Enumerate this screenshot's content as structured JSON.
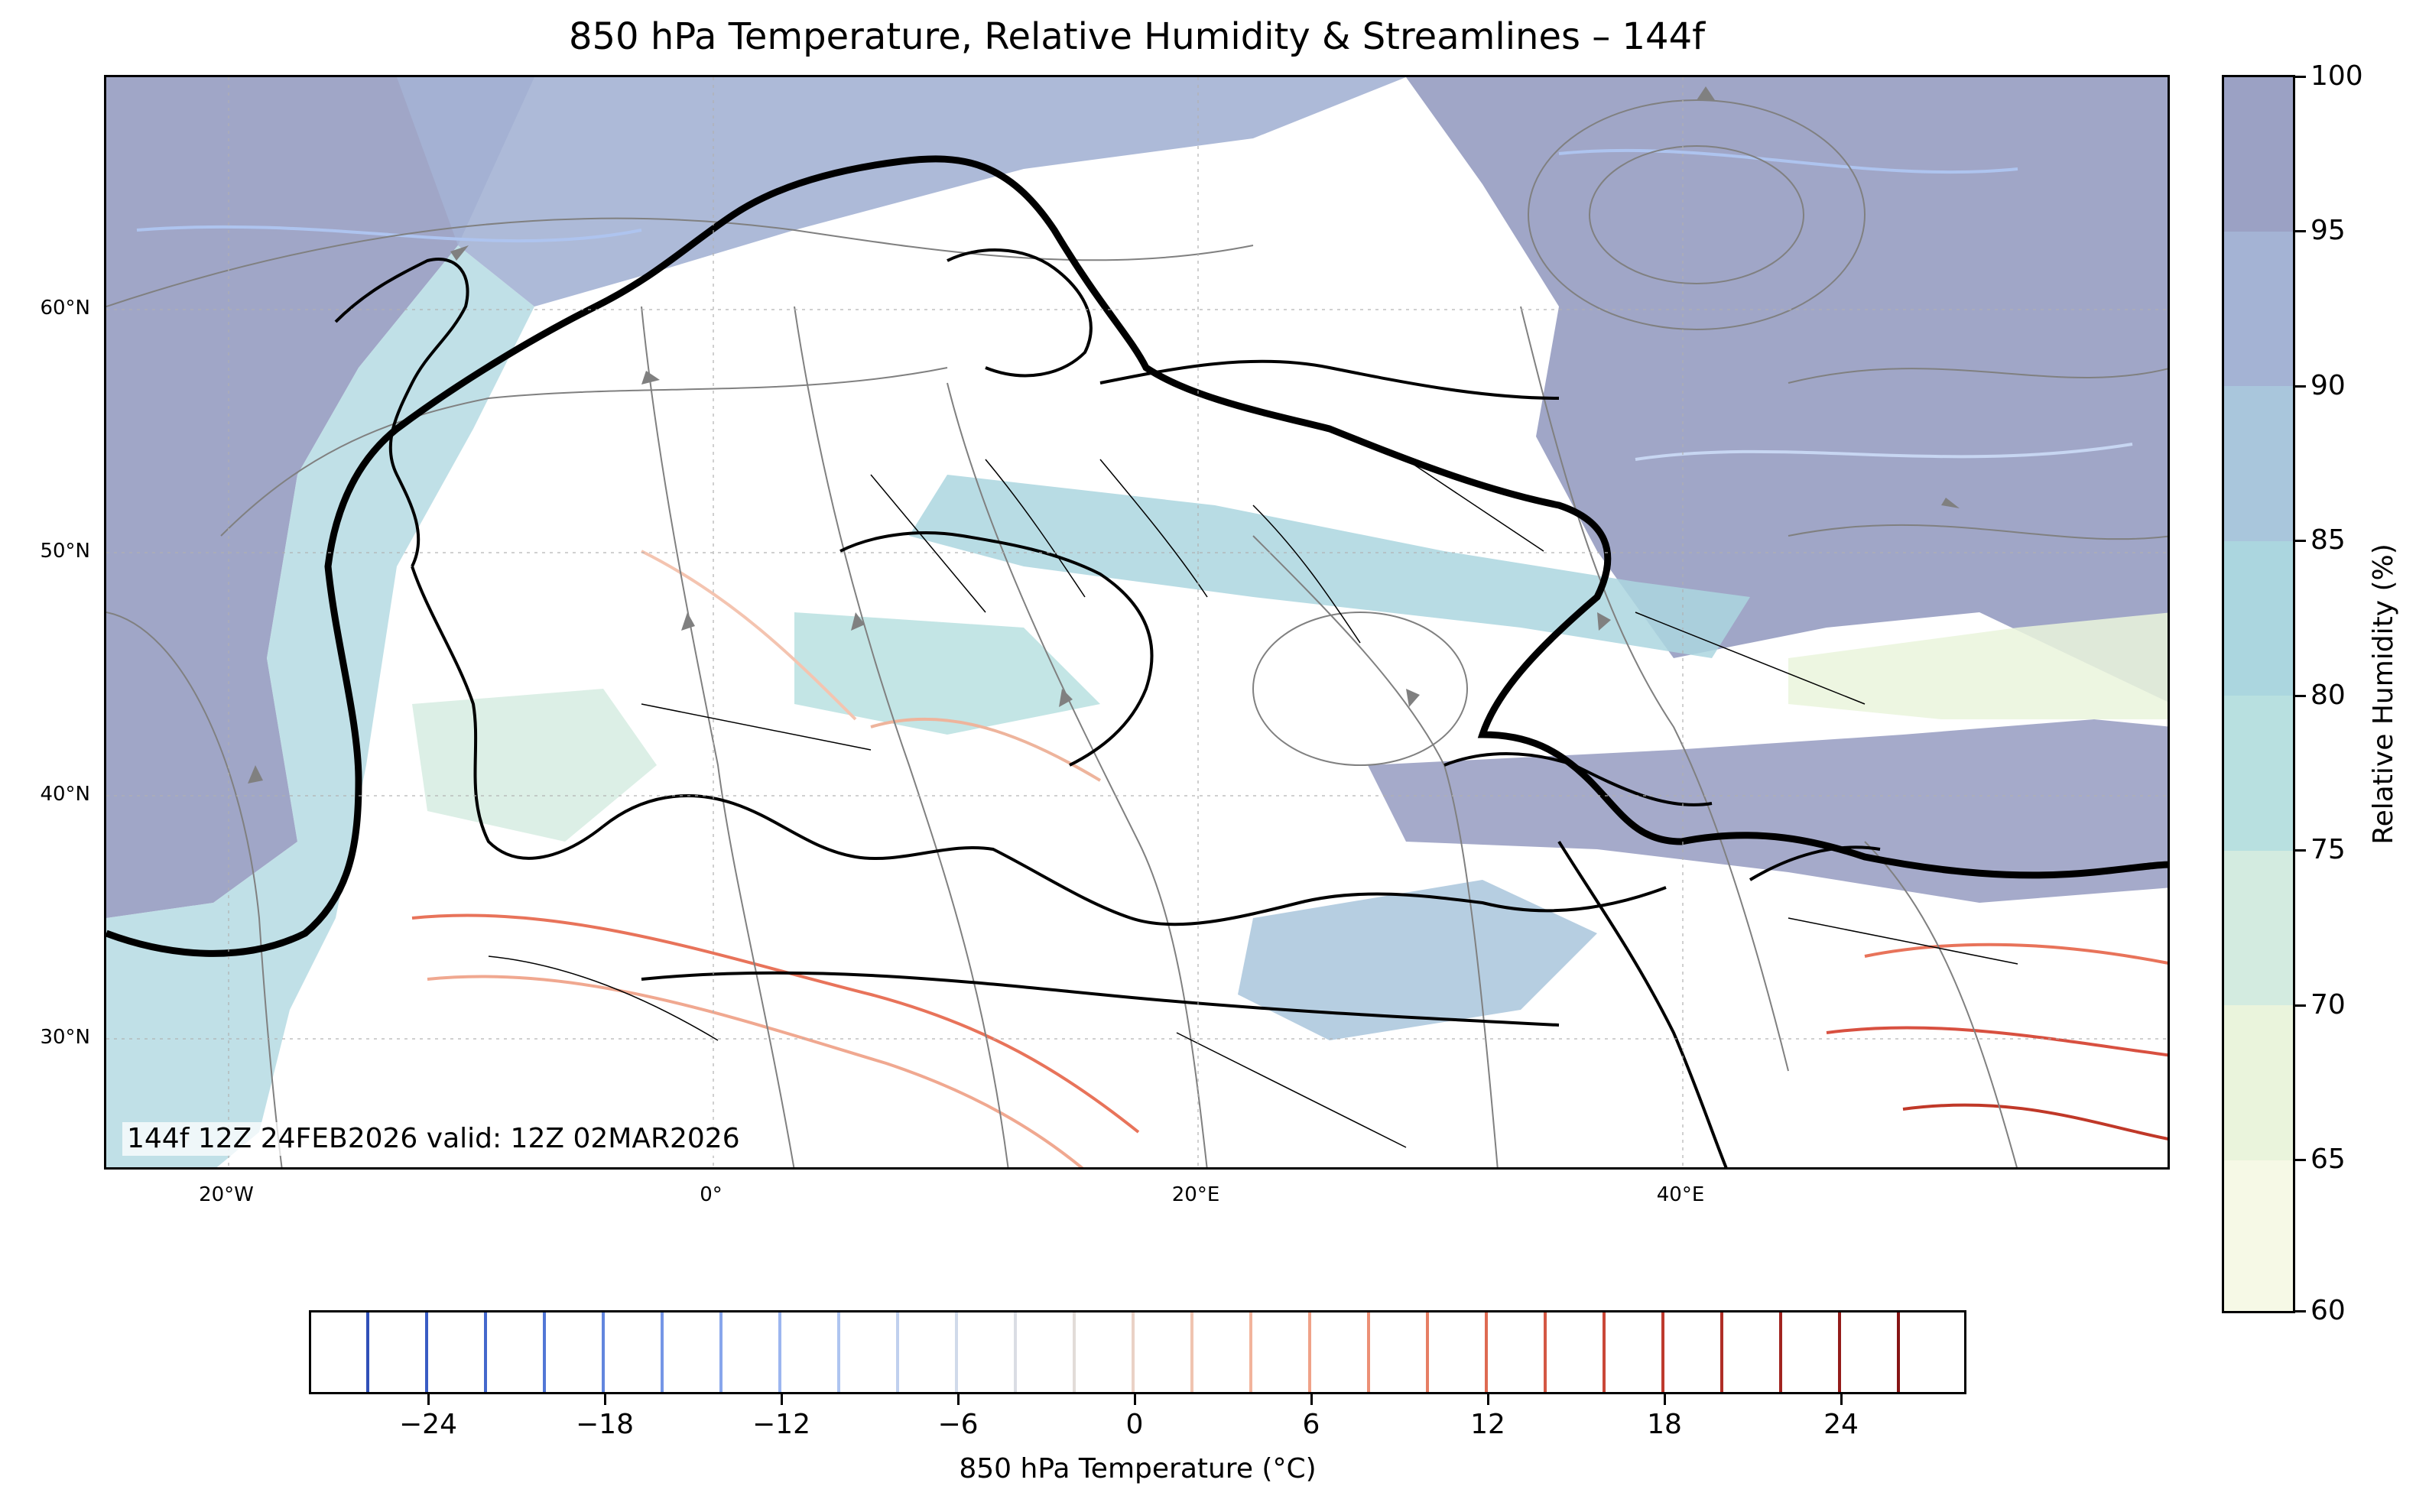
{
  "title": "850 hPa Temperature, Relative Humidity & Streamlines – 144f",
  "valid_text": "144f 12Z 24FEB2026 valid: 12Z 02MAR2026",
  "lat_labels": [
    "60°N",
    "50°N",
    "40°N",
    "30°N"
  ],
  "lon_labels": [
    "20°W",
    "0°",
    "20°E",
    "40°E"
  ],
  "rh_colorbar": {
    "title": "Relative Humidity (%)",
    "ticks": [
      "100",
      "95",
      "90",
      "85",
      "80",
      "75",
      "70",
      "65",
      "60"
    ],
    "colors": [
      "#9ba1c4",
      "#a4b3d4",
      "#a9c6dc",
      "#abd6df",
      "#b8e0e0",
      "#d3ebe0",
      "#eaf4dc",
      "#f6f9e6"
    ]
  },
  "temp_colorbar": {
    "title": "850 hPa Temperature (°C)",
    "ticks": [
      "−24",
      "−18",
      "−12",
      "−6",
      "0",
      "6",
      "12",
      "18",
      "24"
    ]
  },
  "colors": {
    "streamline": "#808080",
    "coastline": "#000000",
    "warm_contour": "#e8735a",
    "cold_contour": "#aec4ef",
    "high_rh": "#9ba1c4"
  }
}
